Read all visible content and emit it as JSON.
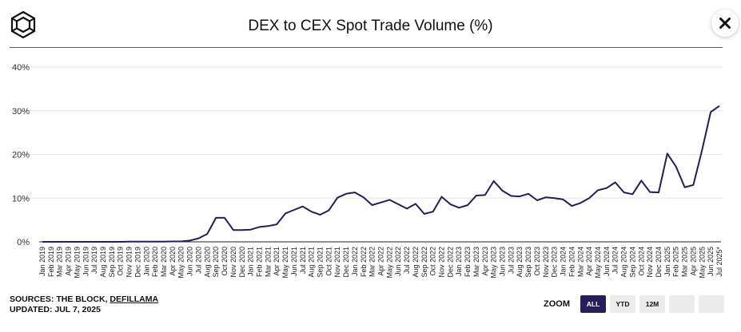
{
  "header": {
    "title": "DEX to CEX Spot Trade Volume (%)",
    "close_label": "✕"
  },
  "footer": {
    "sources_prefix": "SOURCES: THE BLOCK, ",
    "sources_link": "DEFILLAMA",
    "updated": "UPDATED: JUL 7, 2025"
  },
  "zoom": {
    "label": "ZOOM",
    "buttons": [
      {
        "label": "ALL",
        "active": true
      },
      {
        "label": "YTD",
        "active": false
      },
      {
        "label": "12M",
        "active": false
      },
      {
        "label": "",
        "active": false
      },
      {
        "label": "",
        "active": false
      }
    ]
  },
  "colors": {
    "line": "#251e57",
    "accent": "#8a3b97",
    "grid": "#e6e6e6"
  },
  "chart_data": {
    "type": "line",
    "title": "DEX to CEX Spot Trade Volume (%)",
    "xlabel": "",
    "ylabel": "",
    "ylim": [
      0,
      40
    ],
    "yticks": [
      "0%",
      "10%",
      "20%",
      "30%",
      "40%"
    ],
    "grid": true,
    "categories": [
      "Jan 2019",
      "Feb 2019",
      "Mar 2019",
      "Apr 2019",
      "May 2019",
      "Jun 2019",
      "Jul 2019",
      "Aug 2019",
      "Sep 2019",
      "Oct 2019",
      "Nov 2019",
      "Dec 2019",
      "Jan 2020",
      "Feb 2020",
      "Mar 2020",
      "Apr 2020",
      "May 2020",
      "Jun 2020",
      "Jul 2020",
      "Aug 2020",
      "Sep 2020",
      "Oct 2020",
      "Nov 2020",
      "Dec 2020",
      "Jan 2021",
      "Feb 2021",
      "Mar 2021",
      "Apr 2021",
      "May 2021",
      "Jun 2021",
      "Jul 2021",
      "Aug 2021",
      "Sep 2021",
      "Oct 2021",
      "Nov 2021",
      "Dec 2021",
      "Jan 2022",
      "Feb 2022",
      "Mar 2022",
      "Apr 2022",
      "May 2022",
      "Jun 2022",
      "Jul 2022",
      "Aug 2022",
      "Sep 2022",
      "Oct 2022",
      "Nov 2022",
      "Dec 2022",
      "Jan 2023",
      "Feb 2023",
      "Mar 2023",
      "Apr 2023",
      "May 2023",
      "Jun 2023",
      "Jul 2023",
      "Aug 2023",
      "Sep 2023",
      "Oct 2023",
      "Nov 2023",
      "Dec 2023",
      "Jan 2024",
      "Feb 2024",
      "Mar 2024",
      "Apr 2024",
      "May 2024",
      "Jun 2024",
      "Jul 2024",
      "Aug 2024",
      "Sep 2024",
      "Oct 2024",
      "Nov 2024",
      "Dec 2024",
      "Jan 2025",
      "Feb 2025",
      "Mar 2025",
      "Apr 2025",
      "May 2025",
      "Jun 2025",
      "Jul 2025*"
    ],
    "series": [
      {
        "name": "DEX to CEX Spot Trade Volume (%)",
        "values": [
          0.0,
          0.0,
          0.0,
          0.0,
          0.0,
          0.0,
          0.0,
          0.0,
          0.0,
          0.0,
          0.05,
          0.05,
          0.05,
          0.05,
          0.05,
          0.1,
          0.1,
          0.3,
          0.8,
          1.8,
          5.5,
          5.5,
          2.7,
          2.7,
          2.8,
          3.4,
          3.6,
          4.0,
          6.5,
          7.3,
          8.1,
          6.9,
          6.2,
          7.2,
          10.1,
          11.0,
          11.3,
          10.2,
          8.4,
          9.0,
          9.6,
          8.6,
          7.6,
          8.7,
          6.4,
          6.9,
          10.3,
          8.6,
          7.8,
          8.4,
          10.6,
          10.7,
          13.9,
          11.7,
          10.5,
          10.4,
          11.0,
          9.5,
          10.2,
          10.0,
          9.7,
          8.2,
          8.9,
          10.0,
          11.8,
          12.3,
          13.6,
          11.3,
          10.9,
          14.0,
          11.4,
          11.3,
          20.2,
          17.2,
          12.5,
          13.0,
          21.0,
          29.7,
          31.1
        ]
      }
    ]
  }
}
